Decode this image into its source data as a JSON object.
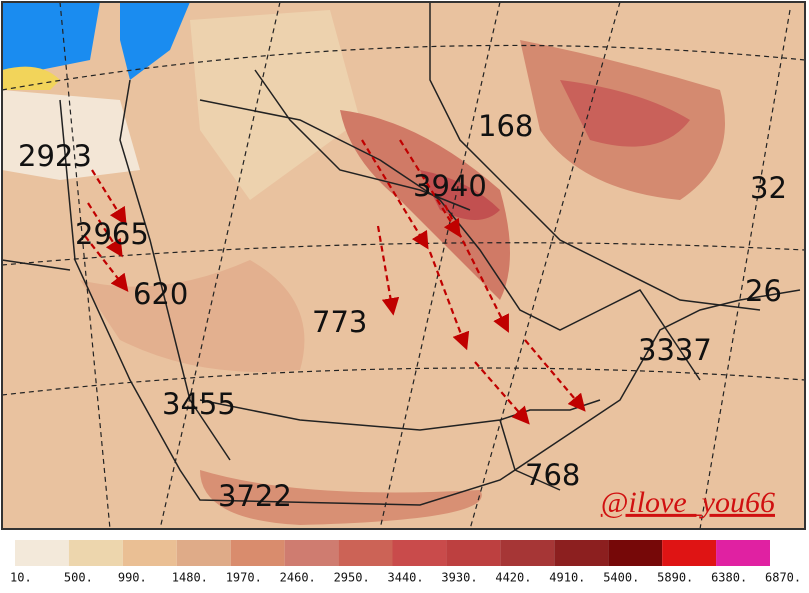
{
  "map": {
    "labels": [
      "2923",
      "2965",
      "620",
      "168",
      "3940",
      "773",
      "3337",
      "3455",
      "3722",
      "768",
      "32",
      "26"
    ],
    "watermark": "@ilove_you66",
    "colorbar": {
      "colors": [
        "#f3e9da",
        "#edd6ad",
        "#eabf94",
        "#dfab88",
        "#d98c6d",
        "#cf7c70",
        "#cc6356",
        "#c94b4b",
        "#bd4040",
        "#a63636",
        "#8c1f1f",
        "#760808",
        "#df1414",
        "#e021a2"
      ],
      "labels": [
        "10.",
        "500.",
        "990.",
        "1480.",
        "1970.",
        "2460.",
        "2950.",
        "3440.",
        "3930.",
        "4420.",
        "4910.",
        "5400.",
        "5890.",
        "6380.",
        "6870."
      ]
    }
  }
}
